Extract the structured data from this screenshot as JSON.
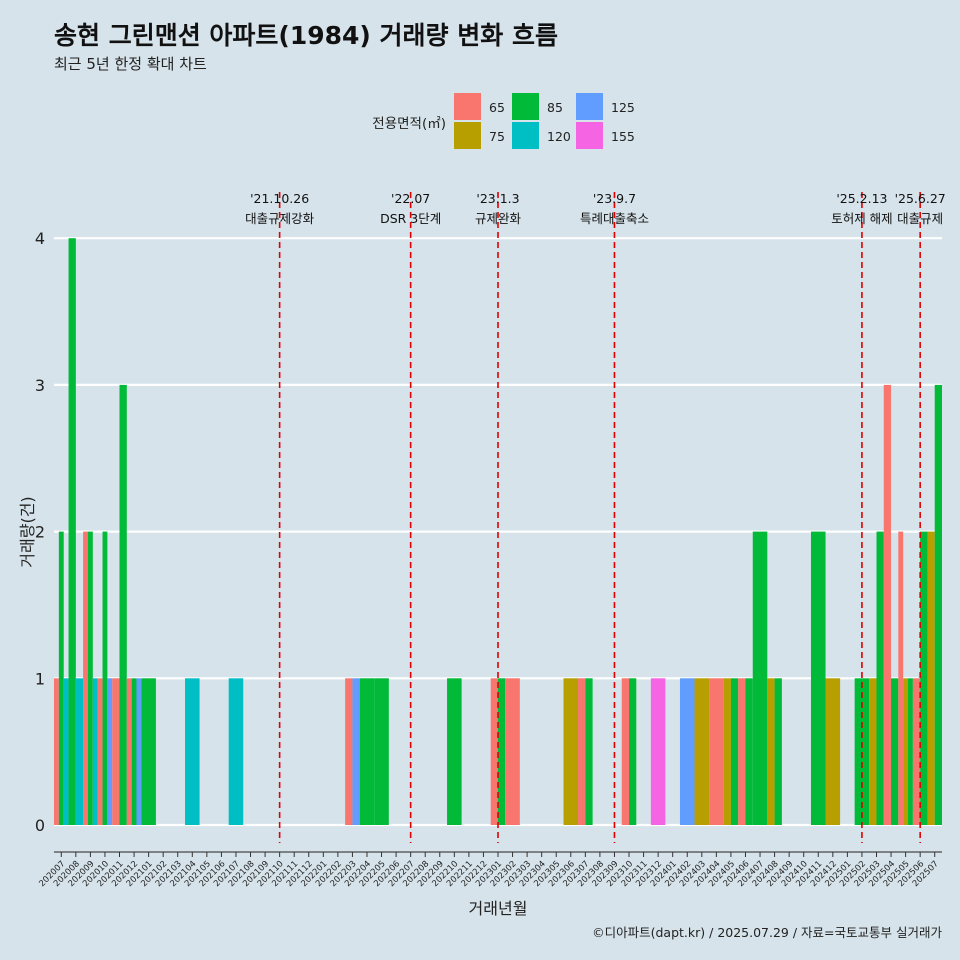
{
  "title": "송현 그린맨션 아파트(1984) 거래량 변화 흐름",
  "subtitle": "최근 5년 한정 확대 차트",
  "caption": "©디아파트(dapt.kr) / 2025.07.29 / 자료=국토교통부 실거래가",
  "chart_data": {
    "type": "bar",
    "xlabel": "거래년월",
    "ylabel": "거래량(건)",
    "ylim": [
      0,
      4
    ],
    "yticks": [
      0,
      1,
      2,
      3,
      4
    ],
    "grid": true,
    "legend": {
      "title": "전용면적(㎡)",
      "placement": "top",
      "entries": [
        {
          "label": "65",
          "color": "#F8766D"
        },
        {
          "label": "75",
          "color": "#B79F00"
        },
        {
          "label": "85",
          "color": "#00BA38"
        },
        {
          "label": "120",
          "color": "#00BFC4"
        },
        {
          "label": "125",
          "color": "#619CFF"
        },
        {
          "label": "155",
          "color": "#F564E3"
        }
      ]
    },
    "categories": [
      "202007",
      "202008",
      "202009",
      "202010",
      "202011",
      "202012",
      "202101",
      "202102",
      "202103",
      "202104",
      "202105",
      "202106",
      "202107",
      "202108",
      "202109",
      "202110",
      "202111",
      "202112",
      "202201",
      "202202",
      "202203",
      "202204",
      "202205",
      "202206",
      "202207",
      "202208",
      "202209",
      "202210",
      "202211",
      "202212",
      "202301",
      "202302",
      "202303",
      "202304",
      "202305",
      "202306",
      "202307",
      "202308",
      "202309",
      "202310",
      "202311",
      "202312",
      "202401",
      "202402",
      "202403",
      "202404",
      "202405",
      "202406",
      "202407",
      "202408",
      "202409",
      "202410",
      "202411",
      "202412",
      "202501",
      "202502",
      "202503",
      "202504",
      "202505",
      "202506",
      "202507"
    ],
    "transactions": [
      {
        "month": "202007",
        "bars": [
          {
            "area": "65",
            "count": 1
          },
          {
            "area": "85",
            "count": 2
          },
          {
            "area": "120",
            "count": 1
          }
        ]
      },
      {
        "month": "202008",
        "bars": [
          {
            "area": "85",
            "count": 4
          },
          {
            "area": "120",
            "count": 1
          }
        ]
      },
      {
        "month": "202009",
        "bars": [
          {
            "area": "65",
            "count": 2
          },
          {
            "area": "85",
            "count": 2
          },
          {
            "area": "120",
            "count": 1
          }
        ]
      },
      {
        "month": "202010",
        "bars": [
          {
            "area": "65",
            "count": 1
          },
          {
            "area": "85",
            "count": 2
          },
          {
            "area": "125",
            "count": 1
          }
        ]
      },
      {
        "month": "202011",
        "bars": [
          {
            "area": "65",
            "count": 1
          },
          {
            "area": "85",
            "count": 3
          }
        ]
      },
      {
        "month": "202012",
        "bars": [
          {
            "area": "65",
            "count": 1
          },
          {
            "area": "85",
            "count": 1
          },
          {
            "area": "125",
            "count": 1
          }
        ]
      },
      {
        "month": "202101",
        "bars": [
          {
            "area": "85",
            "count": 1
          }
        ]
      },
      {
        "month": "202104",
        "bars": [
          {
            "area": "120",
            "count": 1
          }
        ]
      },
      {
        "month": "202107",
        "bars": [
          {
            "area": "120",
            "count": 1
          }
        ]
      },
      {
        "month": "202203",
        "bars": [
          {
            "area": "65",
            "count": 1
          },
          {
            "area": "125",
            "count": 1
          }
        ]
      },
      {
        "month": "202204",
        "bars": [
          {
            "area": "85",
            "count": 1
          }
        ]
      },
      {
        "month": "202205",
        "bars": [
          {
            "area": "85",
            "count": 1
          }
        ]
      },
      {
        "month": "202210",
        "bars": [
          {
            "area": "85",
            "count": 1
          }
        ]
      },
      {
        "month": "202301",
        "bars": [
          {
            "area": "65",
            "count": 1
          },
          {
            "area": "85",
            "count": 1
          }
        ]
      },
      {
        "month": "202302",
        "bars": [
          {
            "area": "65",
            "count": 1
          }
        ]
      },
      {
        "month": "202306",
        "bars": [
          {
            "area": "75",
            "count": 1
          }
        ]
      },
      {
        "month": "202307",
        "bars": [
          {
            "area": "65",
            "count": 1
          },
          {
            "area": "85",
            "count": 1
          }
        ]
      },
      {
        "month": "202310",
        "bars": [
          {
            "area": "65",
            "count": 1
          },
          {
            "area": "85",
            "count": 1
          }
        ]
      },
      {
        "month": "202312",
        "bars": [
          {
            "area": "155",
            "count": 1
          }
        ]
      },
      {
        "month": "202402",
        "bars": [
          {
            "area": "125",
            "count": 1
          }
        ]
      },
      {
        "month": "202403",
        "bars": [
          {
            "area": "75",
            "count": 1
          }
        ]
      },
      {
        "month": "202404",
        "bars": [
          {
            "area": "65",
            "count": 1
          }
        ]
      },
      {
        "month": "202405",
        "bars": [
          {
            "area": "75",
            "count": 1
          },
          {
            "area": "85",
            "count": 1
          }
        ]
      },
      {
        "month": "202406",
        "bars": [
          {
            "area": "65",
            "count": 1
          },
          {
            "area": "85",
            "count": 1
          }
        ]
      },
      {
        "month": "202407",
        "bars": [
          {
            "area": "85",
            "count": 2
          }
        ]
      },
      {
        "month": "202408",
        "bars": [
          {
            "area": "75",
            "count": 1
          },
          {
            "area": "85",
            "count": 1
          }
        ]
      },
      {
        "month": "202411",
        "bars": [
          {
            "area": "85",
            "count": 2
          }
        ]
      },
      {
        "month": "202412",
        "bars": [
          {
            "area": "75",
            "count": 1
          }
        ]
      },
      {
        "month": "202502",
        "bars": [
          {
            "area": "85",
            "count": 1
          }
        ]
      },
      {
        "month": "202503",
        "bars": [
          {
            "area": "75",
            "count": 1
          },
          {
            "area": "85",
            "count": 2
          }
        ]
      },
      {
        "month": "202504",
        "bars": [
          {
            "area": "65",
            "count": 3
          },
          {
            "area": "85",
            "count": 1
          }
        ]
      },
      {
        "month": "202505",
        "bars": [
          {
            "area": "65",
            "count": 2
          },
          {
            "area": "75",
            "count": 1
          },
          {
            "area": "85",
            "count": 1
          }
        ]
      },
      {
        "month": "202506",
        "bars": [
          {
            "area": "65",
            "count": 1
          },
          {
            "area": "85",
            "count": 2
          }
        ]
      },
      {
        "month": "202507",
        "bars": [
          {
            "area": "75",
            "count": 2
          },
          {
            "area": "85",
            "count": 3
          }
        ]
      }
    ],
    "annotations": [
      {
        "date": "'21.10.26",
        "label": "대출규제강화",
        "x": "202110"
      },
      {
        "date": "'22.07",
        "label": "DSR 3단계",
        "x": "202207"
      },
      {
        "date": "'23.1.3",
        "label": "규제완화",
        "x": "202301"
      },
      {
        "date": "'23.9.7",
        "label": "특례대출축소",
        "x": "202309"
      },
      {
        "date": "'25.2.13",
        "label": "토허제 해제",
        "x": "202502"
      },
      {
        "date": "'25.6.27",
        "label": "대출규제",
        "x": "202506"
      }
    ]
  }
}
